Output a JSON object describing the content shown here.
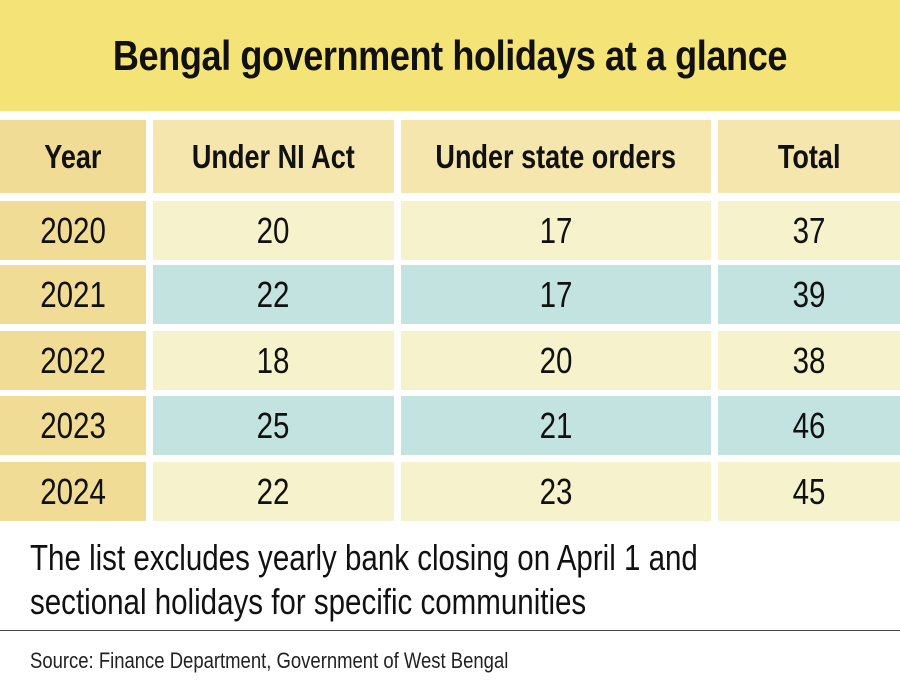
{
  "title": "Bengal government holidays at a glance",
  "colors": {
    "title_band": "#f4e478",
    "header_year": "#f1dc96",
    "header_cell": "#f4e6ad",
    "year_cell": "#f1dc96",
    "row_light": "#f6f3cc",
    "row_teal": "#c3e3e1"
  },
  "chart_data": {
    "type": "table",
    "title": "Bengal government holidays at a glance",
    "columns": [
      "Year",
      "Under NI Act",
      "Under state orders",
      "Total"
    ],
    "rows": [
      [
        "2020",
        "20",
        "17",
        "37"
      ],
      [
        "2021",
        "22",
        "17",
        "39"
      ],
      [
        "2022",
        "18",
        "20",
        "38"
      ],
      [
        "2023",
        "25",
        "21",
        "46"
      ],
      [
        "2024",
        "22",
        "23",
        "45"
      ]
    ]
  },
  "note": {
    "line1": "The list excludes yearly bank closing on April 1 and",
    "line2": "sectional holidays for specific communities"
  },
  "source": "Source: Finance Department, Government of West Bengal"
}
